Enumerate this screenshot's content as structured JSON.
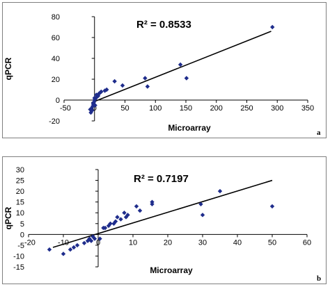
{
  "chart_data": [
    {
      "type": "scatter",
      "panel_label": "a",
      "xlabel": "Microarray",
      "ylabel": "qPCR",
      "annotation": "R² = 0.8533",
      "xlim": [
        -50,
        350
      ],
      "ylim": [
        -20,
        80
      ],
      "xticks": [
        "-50",
        "0",
        "50",
        "100",
        "150",
        "200",
        "250",
        "300",
        "350"
      ],
      "yticks": [
        "-20",
        "0",
        "20",
        "40",
        "60",
        "80"
      ],
      "grid": false,
      "legend": "none",
      "marker_color": "#1f2d8c",
      "trendline": {
        "x": [
          -5,
          290
        ],
        "y": [
          -2.5,
          66
        ]
      },
      "series": [
        {
          "x": [
            292,
            141,
            151,
            83,
            87,
            46,
            33,
            20,
            17,
            11,
            9,
            7,
            6,
            4,
            3,
            2,
            1,
            0,
            -1,
            -2,
            -3,
            -5,
            -4,
            -6,
            -2,
            0,
            1,
            -7
          ],
          "y": [
            70,
            34,
            21,
            21,
            13,
            14,
            18,
            10,
            9,
            8,
            7,
            6,
            4,
            3,
            5,
            2,
            1,
            0,
            -2,
            -4,
            -6,
            -8,
            -10,
            -12,
            -3,
            2,
            -5,
            -9
          ]
        }
      ]
    },
    {
      "type": "scatter",
      "panel_label": "b",
      "xlabel": "Microarray",
      "ylabel": "qPCR",
      "annotation": "R² = 0.7197",
      "xlim": [
        -20,
        60
      ],
      "ylim": [
        -15,
        30
      ],
      "xticks": [
        "-20",
        "-10",
        "0",
        "10",
        "20",
        "30",
        "40",
        "50",
        "60"
      ],
      "yticks": [
        "-15",
        "-10",
        "-5",
        "0",
        "5",
        "10",
        "15",
        "20",
        "25",
        "30"
      ],
      "grid": false,
      "legend": "none",
      "marker_color": "#1f2d8c",
      "trendline": {
        "x": [
          -13,
          50
        ],
        "y": [
          -6,
          25
        ]
      },
      "series": [
        {
          "x": [
            50,
            35,
            30,
            29.5,
            15.5,
            15.5,
            12,
            11,
            8.5,
            8,
            7.5,
            6.5,
            5.5,
            5,
            4.5,
            3.5,
            3,
            2,
            1.5,
            0.5,
            -1,
            -2,
            -3,
            -4,
            -6,
            -7,
            -8,
            -10,
            -14,
            -2.5,
            -1.5
          ],
          "y": [
            13,
            20,
            9,
            14,
            15,
            14,
            11,
            13,
            9,
            8,
            10,
            7,
            8,
            6,
            5,
            5,
            4,
            3,
            3,
            -2,
            -2,
            -3,
            -3,
            -4,
            -5,
            -6,
            -7,
            -9,
            -7,
            -2,
            -1
          ]
        }
      ]
    }
  ]
}
